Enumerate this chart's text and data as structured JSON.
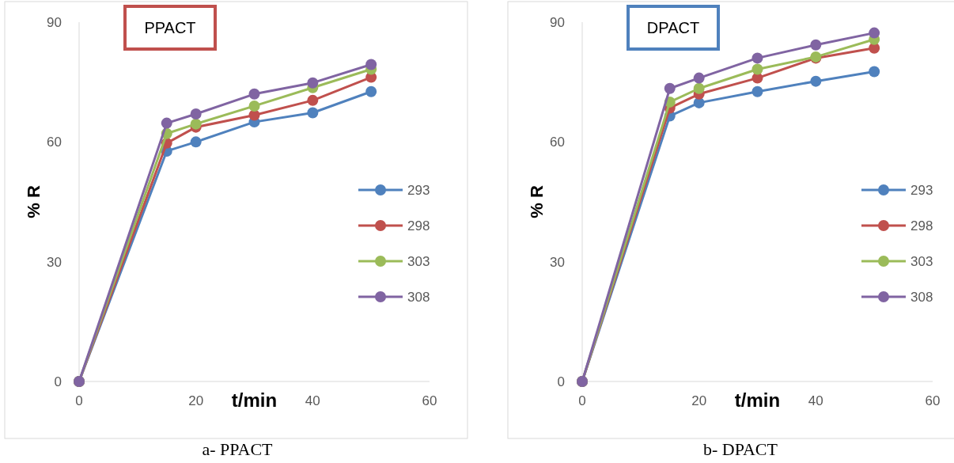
{
  "chart_data": [
    {
      "type": "line",
      "title": "PPACT",
      "xlabel": "t/min",
      "ylabel": "% R",
      "annotations": [
        "a-   PPACT"
      ],
      "x": [
        0,
        15,
        20,
        30,
        40,
        50
      ],
      "xlim": [
        0,
        60
      ],
      "xticks": [
        0,
        20,
        40,
        60
      ],
      "ylim": [
        0,
        90
      ],
      "yticks": [
        0,
        30,
        60,
        90
      ],
      "legend": "right",
      "marker": "circle",
      "series": [
        {
          "name": "293",
          "color": "#4f81bd",
          "values": [
            0,
            57.7,
            60,
            65,
            67.3,
            72.6
          ]
        },
        {
          "name": "298",
          "color": "#c0504d",
          "values": [
            0,
            59.7,
            63.7,
            66.7,
            70.4,
            76.2
          ]
        },
        {
          "name": "303",
          "color": "#9bbb59",
          "values": [
            0,
            62.1,
            64.5,
            69,
            73.6,
            78.2
          ]
        },
        {
          "name": "308",
          "color": "#8064a2",
          "values": [
            0,
            64.7,
            67,
            72,
            74.8,
            79.4
          ]
        }
      ]
    },
    {
      "type": "line",
      "title": "DPACT",
      "xlabel": "t/min",
      "ylabel": "% R",
      "annotations": [
        "b-   DPACT"
      ],
      "x": [
        0,
        15,
        20,
        30,
        40,
        50
      ],
      "xlim": [
        0,
        60
      ],
      "xticks": [
        0,
        20,
        40,
        60
      ],
      "ylim": [
        0,
        90
      ],
      "yticks": [
        0,
        30,
        60,
        90
      ],
      "legend": "right",
      "marker": "circle",
      "series": [
        {
          "name": "293",
          "color": "#4f81bd",
          "values": [
            0,
            66.5,
            69.8,
            72.6,
            75.2,
            77.6
          ]
        },
        {
          "name": "298",
          "color": "#c0504d",
          "values": [
            0,
            68.5,
            72,
            76,
            81,
            83.5
          ]
        },
        {
          "name": "303",
          "color": "#9bbb59",
          "values": [
            0,
            70,
            73.4,
            78.2,
            81.3,
            85.7
          ]
        },
        {
          "name": "308",
          "color": "#8064a2",
          "values": [
            0,
            73.4,
            76,
            81,
            84.3,
            87.3
          ]
        }
      ]
    }
  ]
}
